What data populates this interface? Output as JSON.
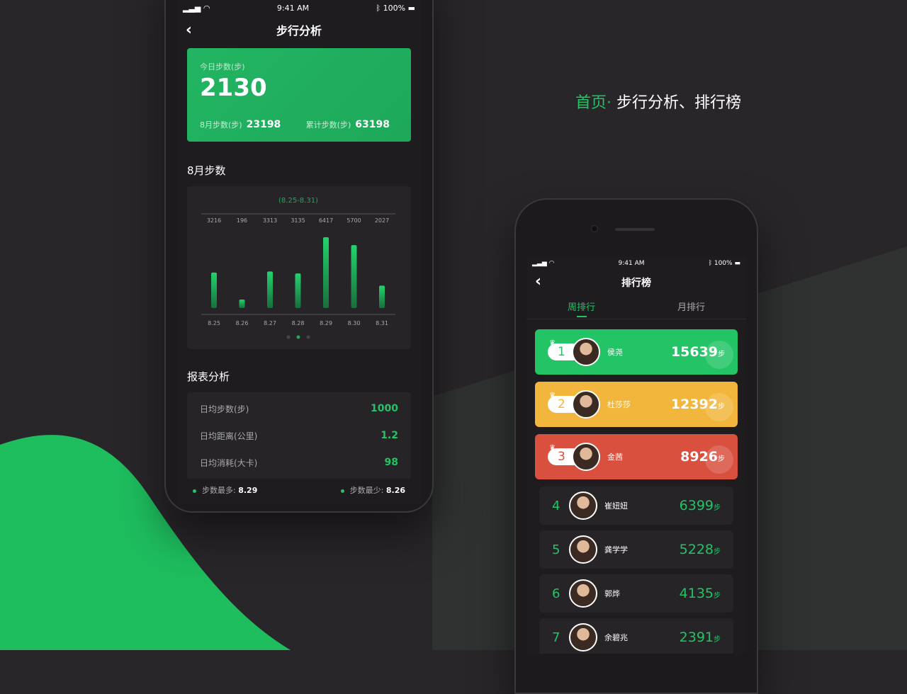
{
  "headline": {
    "accent": "首页·",
    "rest": " 步行分析、排行榜"
  },
  "colors": {
    "green": "#22c466",
    "gold": "#f2b63c",
    "red": "#d9503f",
    "bg": "#29262a"
  },
  "status": {
    "time": "9:41 AM",
    "battery": "100%"
  },
  "analysis": {
    "title": "步行分析",
    "back_icon": "chevron-left-icon",
    "today_label": "今日步数(步)",
    "today_value": "2130",
    "month_label": "8月步数(步)",
    "month_value": "23198",
    "total_label": "累计步数(步)",
    "total_value": "63198",
    "chart_section": "8月步数",
    "report_section": "报表分析",
    "report": [
      {
        "label": "日均步数(步)",
        "value": "1000"
      },
      {
        "label": "日均距离(公里)",
        "value": "1.2"
      },
      {
        "label": "日均消耗(大卡)",
        "value": "98"
      }
    ],
    "most_label": "步数最多:",
    "most_value": "8.29",
    "least_label": "步数最少:",
    "least_value": "8.26"
  },
  "chart_data": {
    "type": "bar",
    "title": "(8.25-8.31)",
    "categories": [
      "8.25",
      "8.26",
      "8.27",
      "8.28",
      "8.29",
      "8.30",
      "8.31"
    ],
    "values": [
      3216,
      196,
      3313,
      3135,
      6417,
      5700,
      2027
    ],
    "grid": false,
    "page_dots": 3,
    "active_page": 2
  },
  "ranking": {
    "title": "排行榜",
    "tabs": [
      "周排行",
      "月排行"
    ],
    "active_tab": 0,
    "unit": "步",
    "items": [
      {
        "rank": "1",
        "name": "侯尧",
        "steps": "15639"
      },
      {
        "rank": "2",
        "name": "杜莎莎",
        "steps": "12392"
      },
      {
        "rank": "3",
        "name": "金茜",
        "steps": "8926"
      },
      {
        "rank": "4",
        "name": "崔妞妞",
        "steps": "6399"
      },
      {
        "rank": "5",
        "name": "龚学学",
        "steps": "5228"
      },
      {
        "rank": "6",
        "name": "郭烨",
        "steps": "4135"
      },
      {
        "rank": "7",
        "name": "余碧兆",
        "steps": "2391"
      }
    ]
  }
}
